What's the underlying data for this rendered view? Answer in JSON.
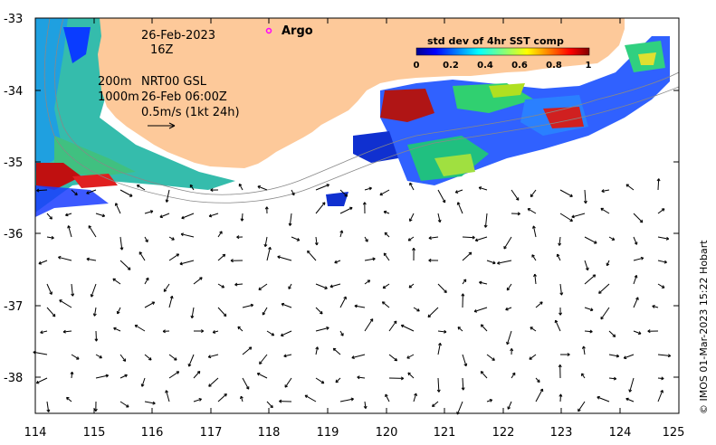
{
  "map": {
    "lon_ticks": [
      "114",
      "115",
      "116",
      "117",
      "118",
      "119",
      "120",
      "121",
      "122",
      "123",
      "124",
      "125"
    ],
    "lat_ticks": [
      "-33",
      "-34",
      "-35",
      "-36",
      "-37",
      "-38"
    ],
    "date_label": "26-Feb-2023",
    "time_label": "16Z",
    "argo_label": "Argo",
    "contour_label_1": "200m",
    "contour_label_2": "1000m",
    "product_label": "NRT00 GSL",
    "product_time": "26-Feb 06:00Z",
    "scale_label": "0.5m/s (1kt 24h)",
    "colorbar": {
      "title": "std dev of 4hr SST comp",
      "ticks": [
        "0",
        "0.2",
        "0.4",
        "0.6",
        "0.8",
        "1"
      ]
    },
    "credit": "© IMOS 01-Mar-2023 15:22 Hobart",
    "colors": {
      "land": "#fdc99a",
      "arrow": "#000000",
      "argo_marker": "#ff00ff"
    }
  }
}
